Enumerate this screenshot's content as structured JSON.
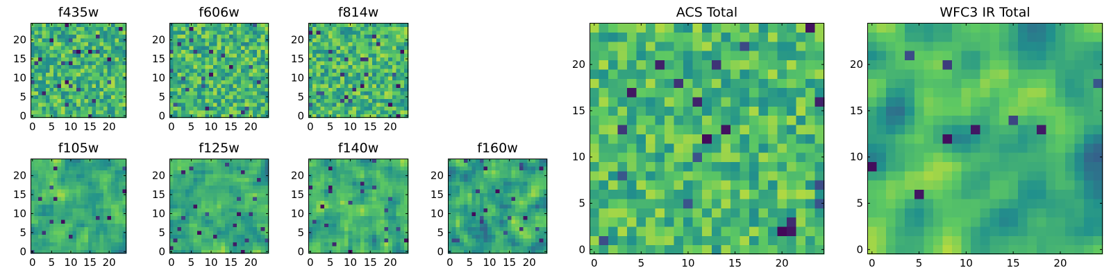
{
  "figure": {
    "colormap": "viridis",
    "colormap_stops": [
      "#440154",
      "#3b528b",
      "#21918c",
      "#5ec962",
      "#fde725"
    ],
    "background": "#ffffff"
  },
  "chart_data": [
    {
      "type": "heatmap",
      "title": "f435w",
      "grid_size": [
        25,
        25
      ],
      "xlim": [
        -0.5,
        24.5
      ],
      "ylim": [
        -0.5,
        24.5
      ],
      "xticks": [
        0,
        5,
        10,
        15,
        20
      ],
      "yticks": [
        0,
        5,
        10,
        15,
        20
      ],
      "xtick_labels": [
        "0",
        "5",
        "10",
        "15",
        "20"
      ],
      "ytick_labels": [
        "0",
        "5",
        "10",
        "15",
        "20"
      ],
      "origin": "lower",
      "texture": {
        "seed": 11,
        "mean": 0.66,
        "spread": 0.2,
        "smooth": 0,
        "dark_fraction": 0.04
      }
    },
    {
      "type": "heatmap",
      "title": "f606w",
      "grid_size": [
        25,
        25
      ],
      "xlim": [
        -0.5,
        24.5
      ],
      "ylim": [
        -0.5,
        24.5
      ],
      "xticks": [
        0,
        5,
        10,
        15,
        20
      ],
      "yticks": [
        0,
        5,
        10,
        15,
        20
      ],
      "xtick_labels": [
        "0",
        "5",
        "10",
        "15",
        "20"
      ],
      "ytick_labels": [
        "0",
        "5",
        "10",
        "15",
        "20"
      ],
      "origin": "lower",
      "texture": {
        "seed": 23,
        "mean": 0.66,
        "spread": 0.2,
        "smooth": 0,
        "dark_fraction": 0.035
      }
    },
    {
      "type": "heatmap",
      "title": "f814w",
      "grid_size": [
        25,
        25
      ],
      "xlim": [
        -0.5,
        24.5
      ],
      "ylim": [
        -0.5,
        24.5
      ],
      "xticks": [
        0,
        5,
        10,
        15,
        20
      ],
      "yticks": [
        0,
        5,
        10,
        15,
        20
      ],
      "xtick_labels": [
        "0",
        "5",
        "10",
        "15",
        "20"
      ],
      "ytick_labels": [
        "0",
        "5",
        "10",
        "15",
        "20"
      ],
      "origin": "lower",
      "texture": {
        "seed": 37,
        "mean": 0.66,
        "spread": 0.2,
        "smooth": 0,
        "dark_fraction": 0.03
      }
    },
    {
      "type": "heatmap",
      "title": "f105w",
      "grid_size": [
        25,
        25
      ],
      "xlim": [
        -0.5,
        24.5
      ],
      "ylim": [
        -0.5,
        24.5
      ],
      "xticks": [
        0,
        5,
        10,
        15,
        20
      ],
      "yticks": [
        0,
        5,
        10,
        15,
        20
      ],
      "xtick_labels": [
        "0",
        "5",
        "10",
        "15",
        "20"
      ],
      "ytick_labels": [
        "0",
        "5",
        "10",
        "15",
        "20"
      ],
      "origin": "lower",
      "texture": {
        "seed": 41,
        "mean": 0.62,
        "spread": 0.22,
        "smooth": 1,
        "dark_fraction": 0.03
      }
    },
    {
      "type": "heatmap",
      "title": "f125w",
      "grid_size": [
        25,
        25
      ],
      "xlim": [
        -0.5,
        24.5
      ],
      "ylim": [
        -0.5,
        24.5
      ],
      "xticks": [
        0,
        5,
        10,
        15,
        20
      ],
      "yticks": [
        0,
        5,
        10,
        15,
        20
      ],
      "xtick_labels": [
        "0",
        "5",
        "10",
        "15",
        "20"
      ],
      "ytick_labels": [
        "0",
        "5",
        "10",
        "15",
        "20"
      ],
      "origin": "lower",
      "texture": {
        "seed": 53,
        "mean": 0.62,
        "spread": 0.22,
        "smooth": 1,
        "dark_fraction": 0.025
      }
    },
    {
      "type": "heatmap",
      "title": "f140w",
      "grid_size": [
        25,
        25
      ],
      "xlim": [
        -0.5,
        24.5
      ],
      "ylim": [
        -0.5,
        24.5
      ],
      "xticks": [
        0,
        5,
        10,
        15,
        20
      ],
      "yticks": [
        0,
        5,
        10,
        15,
        20
      ],
      "xtick_labels": [
        "0",
        "5",
        "10",
        "15",
        "20"
      ],
      "ytick_labels": [
        "0",
        "5",
        "10",
        "15",
        "20"
      ],
      "origin": "lower",
      "texture": {
        "seed": 67,
        "mean": 0.62,
        "spread": 0.22,
        "smooth": 1,
        "dark_fraction": 0.025
      }
    },
    {
      "type": "heatmap",
      "title": "f160w",
      "grid_size": [
        25,
        25
      ],
      "xlim": [
        -0.5,
        24.5
      ],
      "ylim": [
        -0.5,
        24.5
      ],
      "xticks": [
        0,
        5,
        10,
        15,
        20
      ],
      "yticks": [
        0,
        5,
        10,
        15,
        20
      ],
      "xtick_labels": [
        "0",
        "5",
        "10",
        "15",
        "20"
      ],
      "ytick_labels": [
        "0",
        "5",
        "10",
        "15",
        "20"
      ],
      "origin": "lower",
      "texture": {
        "seed": 79,
        "mean": 0.6,
        "spread": 0.24,
        "smooth": 1,
        "dark_fraction": 0.03
      }
    },
    {
      "type": "heatmap",
      "title": "ACS Total",
      "grid_size": [
        25,
        25
      ],
      "xlim": [
        -0.5,
        24.5
      ],
      "ylim": [
        -0.5,
        24.5
      ],
      "xticks": [
        0,
        5,
        10,
        15,
        20
      ],
      "yticks": [
        0,
        5,
        10,
        15,
        20
      ],
      "xtick_labels": [
        "0",
        "5",
        "10",
        "15",
        "20"
      ],
      "ytick_labels": [
        "0",
        "5",
        "10",
        "15",
        "20"
      ],
      "origin": "lower",
      "texture": {
        "seed": 97,
        "mean": 0.68,
        "spread": 0.18,
        "smooth": 0,
        "dark_fraction": 0.03
      }
    },
    {
      "type": "heatmap",
      "title": "WFC3 IR Total",
      "grid_size": [
        25,
        25
      ],
      "xlim": [
        -0.5,
        24.5
      ],
      "ylim": [
        -0.5,
        24.5
      ],
      "xticks": [
        0,
        5,
        10,
        15,
        20
      ],
      "yticks": [
        0,
        5,
        10,
        15,
        20
      ],
      "xtick_labels": [
        "0",
        "5",
        "10",
        "15",
        "20"
      ],
      "ytick_labels": [
        "0",
        "5",
        "10",
        "15",
        "20"
      ],
      "origin": "lower",
      "texture": {
        "seed": 113,
        "mean": 0.6,
        "spread": 0.26,
        "smooth": 2,
        "dark_fraction": 0.02
      }
    }
  ]
}
